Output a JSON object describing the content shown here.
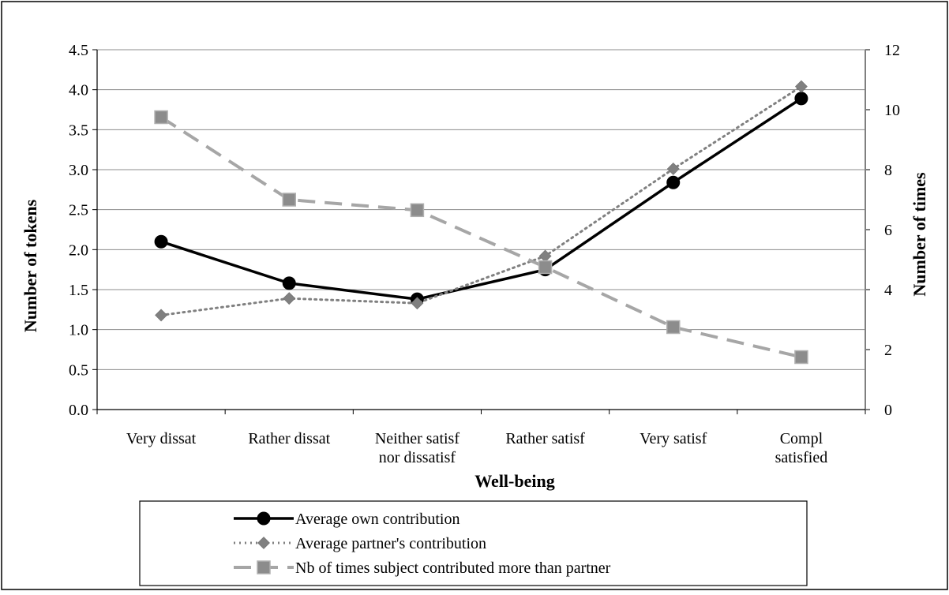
{
  "chart_data": {
    "type": "line",
    "xlabel": "Well-being",
    "ylabel": "Number of tokens",
    "y2label": "Number of times",
    "categories": [
      [
        "Very dissat"
      ],
      [
        "Rather dissat"
      ],
      [
        "Neither satisf",
        "nor dissatisf"
      ],
      [
        "Rather satisf"
      ],
      [
        "Very satisf"
      ],
      [
        "Compl",
        "satisfied"
      ]
    ],
    "ylim": [
      0,
      4.5
    ],
    "y_ticks": [
      "0.0",
      "0.5",
      "1.0",
      "1.5",
      "2.0",
      "2.5",
      "3.0",
      "3.5",
      "4.0",
      "4.5"
    ],
    "y2lim": [
      0,
      12
    ],
    "y2_ticks": [
      "0",
      "2",
      "4",
      "6",
      "8",
      "10",
      "12"
    ],
    "grid": true,
    "legend_position": "bottom",
    "series": [
      {
        "name": "Average own contribution",
        "axis": "left",
        "style": "solid",
        "marker": "circle",
        "color": "#000000",
        "values": [
          2.1,
          1.58,
          1.38,
          1.75,
          2.84,
          3.89
        ]
      },
      {
        "name": "Average partner's contribution",
        "axis": "left",
        "style": "dotted",
        "marker": "diamond",
        "color": "#808080",
        "values": [
          1.18,
          1.39,
          1.33,
          1.92,
          3.01,
          4.04
        ]
      },
      {
        "name": "Nb of times subject contributed more than partner",
        "axis": "right",
        "style": "dashed",
        "marker": "square",
        "color": "#a6a6a6",
        "values": [
          9.75,
          7.0,
          6.65,
          4.75,
          2.75,
          1.75
        ]
      }
    ]
  }
}
